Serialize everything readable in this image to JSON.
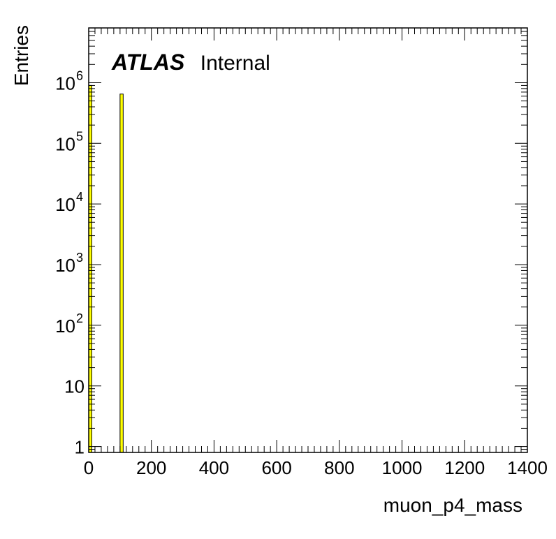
{
  "chart_data": {
    "type": "bar",
    "xlabel": "muon_p4_mass",
    "ylabel": "Entries",
    "xlim": [
      0,
      1400
    ],
    "ylim": [
      0.8,
      8000000
    ],
    "y_scale": "log",
    "x_ticks": [
      "0",
      "200",
      "400",
      "600",
      "800",
      "1000",
      "1200",
      "1400"
    ],
    "y_ticks": [
      {
        "value": 1,
        "base": "1",
        "exp": ""
      },
      {
        "value": 10,
        "base": "10",
        "exp": ""
      },
      {
        "value": 100,
        "base": "10",
        "exp": "2"
      },
      {
        "value": 1000,
        "base": "10",
        "exp": "3"
      },
      {
        "value": 10000,
        "base": "10",
        "exp": "4"
      },
      {
        "value": 100000,
        "base": "10",
        "exp": "5"
      },
      {
        "value": 1000000,
        "base": "10",
        "exp": "6"
      }
    ],
    "bins": [
      {
        "low": 0,
        "high": 10,
        "value": 900000
      },
      {
        "low": 100,
        "high": 110,
        "value": 650000
      }
    ],
    "fill_color": "#ffff00",
    "grid": false,
    "annotation": {
      "bold": "ATLAS",
      "normal": "Internal"
    }
  }
}
